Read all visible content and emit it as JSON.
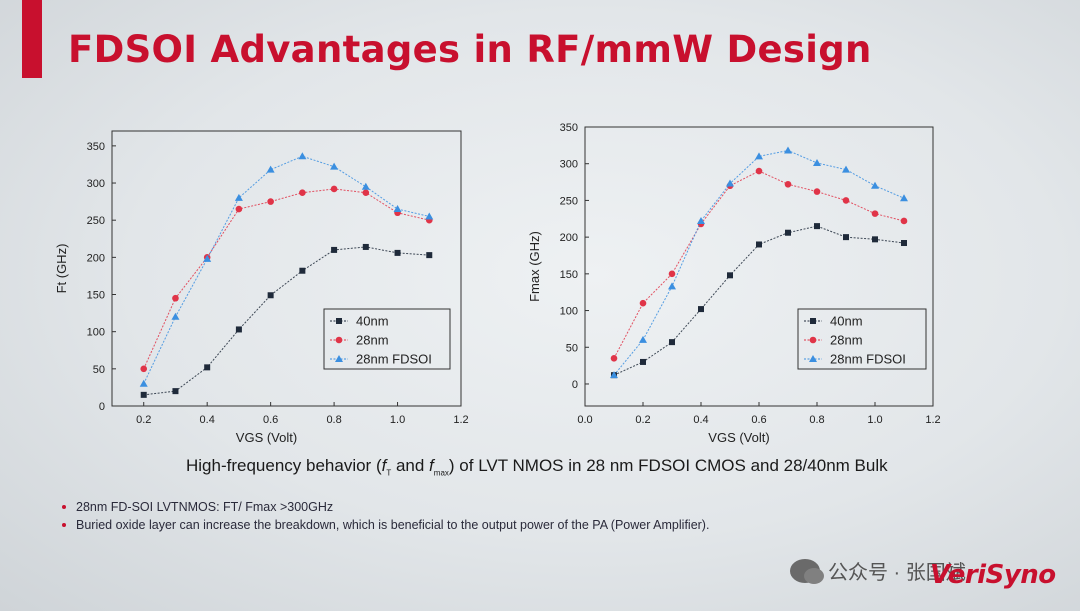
{
  "slide": {
    "title": "FDSOI Advantages in RF/mmW Design",
    "caption_prefix": "High-frequency behavior (",
    "caption_ft": "f",
    "caption_ft_sub": "T",
    "caption_and": " and ",
    "caption_fmax": "f",
    "caption_fmax_sub": "max",
    "caption_suffix": ") of LVT NMOS in 28 nm FDSOI CMOS and 28/40nm Bulk",
    "bullets": [
      "28nm FD-SOI LVTNMOS: FT/ Fmax >300GHz",
      "Buried oxide layer can increase the breakdown, which is beneficial to the output power of the PA (Power Amplifier)."
    ],
    "watermark": "公众号 · 张国斌",
    "logo": "VeriSyno",
    "accent_color": "#c8102e"
  },
  "chart_data": [
    {
      "type": "line",
      "xlabel": "VGS (Volt)",
      "ylabel": "Ft (GHz)",
      "xlim": [
        0.1,
        1.2
      ],
      "ylim": [
        0,
        370
      ],
      "xticks": [
        "0.2",
        "0.4",
        "0.6",
        "0.8",
        "1.0",
        "1.2"
      ],
      "yticks": [
        "0",
        "50",
        "100",
        "150",
        "200",
        "250",
        "300",
        "350"
      ],
      "legend_position": "bottom-right",
      "series": [
        {
          "name": "40nm",
          "color": "#1f2a3a",
          "marker": "square",
          "x": [
            0.2,
            0.3,
            0.4,
            0.5,
            0.6,
            0.7,
            0.8,
            0.9,
            1.0,
            1.1
          ],
          "y": [
            15,
            20,
            52,
            103,
            149,
            182,
            210,
            214,
            206,
            203
          ]
        },
        {
          "name": "28nm",
          "color": "#e03448",
          "marker": "circle",
          "x": [
            0.2,
            0.3,
            0.4,
            0.5,
            0.6,
            0.7,
            0.8,
            0.9,
            1.0,
            1.1
          ],
          "y": [
            50,
            145,
            200,
            265,
            275,
            287,
            292,
            287,
            260,
            250
          ]
        },
        {
          "name": "28nm FDSOI",
          "color": "#3b8fe0",
          "marker": "triangle",
          "x": [
            0.2,
            0.3,
            0.4,
            0.5,
            0.6,
            0.7,
            0.8,
            0.9,
            1.0,
            1.1
          ],
          "y": [
            30,
            120,
            198,
            280,
            318,
            336,
            322,
            295,
            265,
            255
          ]
        }
      ]
    },
    {
      "type": "line",
      "xlabel": "VGS (Volt)",
      "ylabel": "Fmax (GHz)",
      "xlim": [
        0.0,
        1.2
      ],
      "ylim": [
        -30,
        350
      ],
      "xticks": [
        "0.0",
        "0.2",
        "0.4",
        "0.6",
        "0.8",
        "1.0",
        "1.2"
      ],
      "yticks": [
        "0",
        "50",
        "100",
        "150",
        "200",
        "250",
        "300",
        "350"
      ],
      "legend_position": "bottom-right",
      "series": [
        {
          "name": "40nm",
          "color": "#1f2a3a",
          "marker": "square",
          "x": [
            0.1,
            0.2,
            0.3,
            0.4,
            0.5,
            0.6,
            0.7,
            0.8,
            0.9,
            1.0,
            1.1
          ],
          "y": [
            12,
            30,
            57,
            102,
            148,
            190,
            206,
            215,
            200,
            197,
            192
          ]
        },
        {
          "name": "28nm",
          "color": "#e03448",
          "marker": "circle",
          "x": [
            0.1,
            0.2,
            0.3,
            0.4,
            0.5,
            0.6,
            0.7,
            0.8,
            0.9,
            1.0,
            1.1
          ],
          "y": [
            35,
            110,
            150,
            218,
            270,
            290,
            272,
            262,
            250,
            232,
            222
          ]
        },
        {
          "name": "28nm FDSOI",
          "color": "#3b8fe0",
          "marker": "triangle",
          "x": [
            0.1,
            0.2,
            0.3,
            0.4,
            0.5,
            0.6,
            0.7,
            0.8,
            0.9,
            1.0,
            1.1
          ],
          "y": [
            12,
            60,
            133,
            222,
            273,
            310,
            318,
            301,
            292,
            270,
            253
          ]
        }
      ]
    }
  ]
}
